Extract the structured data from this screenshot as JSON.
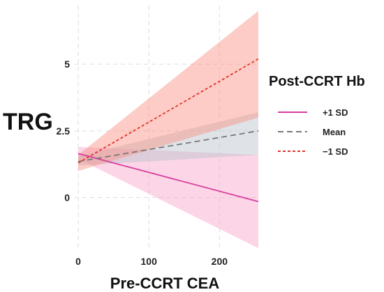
{
  "chart_data": {
    "type": "line",
    "title": "",
    "xlabel": "Pre-CCRT CEA",
    "ylabel": "TRG",
    "xlim": [
      -5,
      257
    ],
    "ylim": [
      -2.0,
      7.2
    ],
    "xticks": [
      0,
      100,
      200
    ],
    "yticks": [
      0,
      2.5,
      5
    ],
    "ytick_labels": [
      "0",
      "2.5",
      "5"
    ],
    "grid": true,
    "legend": {
      "title": "Post-CCRT  Hb",
      "position": "right",
      "entries": [
        "+1 SD",
        "Mean",
        "−1 SD"
      ]
    },
    "series": [
      {
        "name": "+1 SD",
        "color": "#d63ca0",
        "dash": "solid",
        "fill": "#f9a3c8",
        "x": [
          0,
          255
        ],
        "y": [
          1.65,
          -0.15
        ],
        "ci_lower": [
          1.45,
          -1.9
        ],
        "ci_upper": [
          1.9,
          1.6
        ]
      },
      {
        "name": "Mean",
        "color": "#777777",
        "dash": "dashed",
        "fill": "#b9c2cc",
        "x": [
          0,
          255
        ],
        "y": [
          1.35,
          2.5
        ],
        "ci_lower": [
          1.2,
          1.6
        ],
        "ci_upper": [
          1.55,
          3.2
        ]
      },
      {
        "name": "−1 SD",
        "color": "#e0362c",
        "dash": "dotted",
        "fill": "#fb8e80",
        "x": [
          0,
          255
        ],
        "y": [
          1.3,
          5.2
        ],
        "ci_lower": [
          1.0,
          3.0
        ],
        "ci_upper": [
          1.6,
          7.0
        ]
      }
    ]
  }
}
